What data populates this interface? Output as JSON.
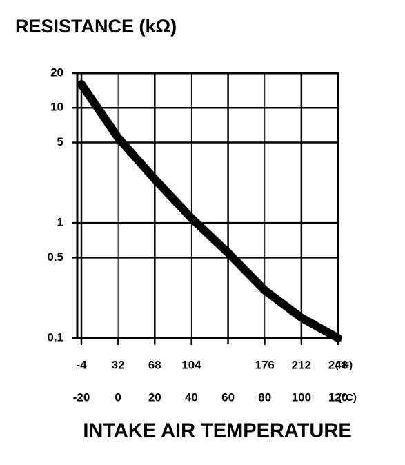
{
  "chart_data": {
    "type": "line",
    "title": "RESISTANCE (kΩ)",
    "xlabel": "INTAKE AIR TEMPERATURE",
    "x": [
      -20,
      0,
      20,
      40,
      60,
      80,
      100,
      120
    ],
    "series": [
      {
        "name": null,
        "color": "#000000",
        "values": [
          16,
          5.5,
          2.4,
          1.1,
          0.55,
          0.26,
          0.15,
          0.1
        ]
      }
    ],
    "xlim": [
      -20,
      120
    ],
    "xticks": [
      -20,
      0,
      20,
      40,
      60,
      80,
      100,
      120
    ],
    "xunit": "(°C)",
    "x2lim": [
      -4,
      248
    ],
    "x2ticks": [
      -4,
      32,
      68,
      104,
      176,
      212,
      248
    ],
    "x2unit": "(°F)",
    "ylim": [
      0.1,
      20
    ],
    "yticks": [
      0.1,
      0.5,
      1,
      5,
      10,
      20
    ],
    "ylog": true,
    "grid": true
  }
}
